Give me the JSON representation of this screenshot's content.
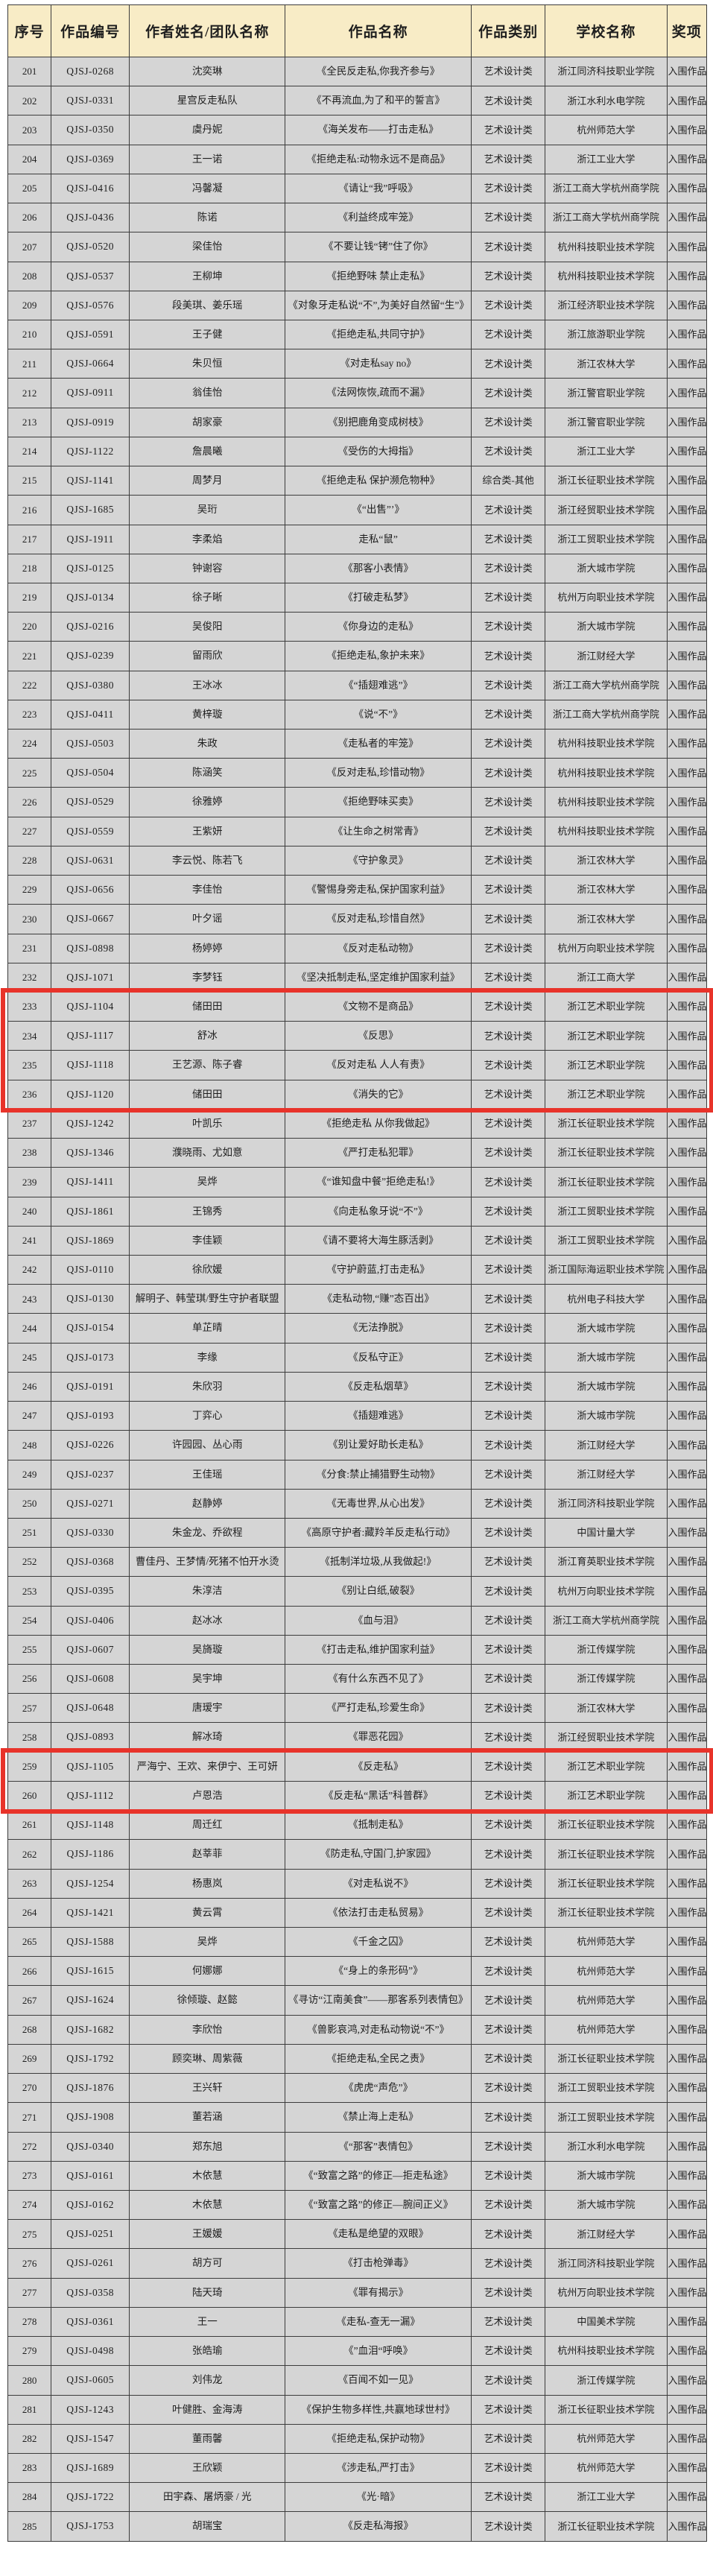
{
  "colors": {
    "header_bg": "#f8ecc6",
    "row_bg": "#d5d5d5",
    "border": "#3c3c3c",
    "highlight_red": "#e8332a"
  },
  "table": {
    "columns": [
      "序号",
      "作品编号",
      "作者姓名/团队名称",
      "作品名称",
      "作品类别",
      "学校名称",
      "奖项"
    ],
    "highlight_groups": [
      [
        "233",
        "236"
      ],
      [
        "259",
        "260"
      ]
    ],
    "rows": [
      [
        "201",
        "QJSJ-0268",
        "沈奕琳",
        "《全民反走私,你我齐参与》",
        "艺术设计类",
        "浙江同济科技职业学院",
        "入围作品"
      ],
      [
        "202",
        "QJSJ-0331",
        "星宫反走私队",
        "《不再流血,为了和平的誓言》",
        "艺术设计类",
        "浙江水利水电学院",
        "入围作品"
      ],
      [
        "203",
        "QJSJ-0350",
        "虞丹妮",
        "《海关发布——打击走私》",
        "艺术设计类",
        "杭州师范大学",
        "入围作品"
      ],
      [
        "204",
        "QJSJ-0369",
        "王一诺",
        "《拒绝走私:动物永远不是商品》",
        "艺术设计类",
        "浙江工业大学",
        "入围作品"
      ],
      [
        "205",
        "QJSJ-0416",
        "冯馨凝",
        "《请让“我”呼吸》",
        "艺术设计类",
        "浙江工商大学杭州商学院",
        "入围作品"
      ],
      [
        "206",
        "QJSJ-0436",
        "陈诺",
        "《利益终成牢笼》",
        "艺术设计类",
        "浙江工商大学杭州商学院",
        "入围作品"
      ],
      [
        "207",
        "QJSJ-0520",
        "梁佳怡",
        "《不要让钱“铐”住了你》",
        "艺术设计类",
        "杭州科技职业技术学院",
        "入围作品"
      ],
      [
        "208",
        "QJSJ-0537",
        "王柳坤",
        "《拒绝野味 禁止走私》",
        "艺术设计类",
        "杭州科技职业技术学院",
        "入围作品"
      ],
      [
        "209",
        "QJSJ-0576",
        "段美琪、姜乐瑶",
        "《对象牙走私说“不”,为美好自然留“生”》",
        "艺术设计类",
        "浙江经济职业技术学院",
        "入围作品"
      ],
      [
        "210",
        "QJSJ-0591",
        "王子健",
        "《拒绝走私,共同守护》",
        "艺术设计类",
        "浙江旅游职业学院",
        "入围作品"
      ],
      [
        "211",
        "QJSJ-0664",
        "朱贝恒",
        "《对走私say no》",
        "艺术设计类",
        "浙江农林大学",
        "入围作品"
      ],
      [
        "212",
        "QJSJ-0911",
        "翁佳怡",
        "《法网恢恢,疏而不漏》",
        "艺术设计类",
        "浙江警官职业学院",
        "入围作品"
      ],
      [
        "213",
        "QJSJ-0919",
        "胡家豪",
        "《别把鹿角变成树枝》",
        "艺术设计类",
        "浙江警官职业学院",
        "入围作品"
      ],
      [
        "214",
        "QJSJ-1122",
        "詹晨曦",
        "《受伤的大拇指》",
        "艺术设计类",
        "浙江工业大学",
        "入围作品"
      ],
      [
        "215",
        "QJSJ-1141",
        "周梦月",
        "《拒绝走私 保护濒危物种》",
        "综合类-其他",
        "浙江长征职业技术学院",
        "入围作品"
      ],
      [
        "216",
        "QJSJ-1685",
        "吴珩",
        "《“出售”’》",
        "艺术设计类",
        "浙江经贸职业技术学院",
        "入围作品"
      ],
      [
        "217",
        "QJSJ-1911",
        "李柔焰",
        "走私“鼠”",
        "艺术设计类",
        "浙江工贸职业技术学院",
        "入围作品"
      ],
      [
        "218",
        "QJSJ-0125",
        "钟谢容",
        "《那客小表情》",
        "艺术设计类",
        "浙大城市学院",
        "入围作品"
      ],
      [
        "219",
        "QJSJ-0134",
        "徐子晰",
        "《打破走私梦》",
        "艺术设计类",
        "杭州万向职业技术学院",
        "入围作品"
      ],
      [
        "220",
        "QJSJ-0216",
        "吴俊阳",
        "《你身边的走私》",
        "艺术设计类",
        "浙大城市学院",
        "入围作品"
      ],
      [
        "221",
        "QJSJ-0239",
        "留雨欣",
        "《拒绝走私,象护未来》",
        "艺术设计类",
        "浙江财经大学",
        "入围作品"
      ],
      [
        "222",
        "QJSJ-0380",
        "王冰冰",
        "《“插翅难逃”》",
        "艺术设计类",
        "浙江工商大学杭州商学院",
        "入围作品"
      ],
      [
        "223",
        "QJSJ-0411",
        "黄梓璇",
        "《说“不”》",
        "艺术设计类",
        "浙江工商大学杭州商学院",
        "入围作品"
      ],
      [
        "224",
        "QJSJ-0503",
        "朱政",
        "《走私者的牢笼》",
        "艺术设计类",
        "杭州科技职业技术学院",
        "入围作品"
      ],
      [
        "225",
        "QJSJ-0504",
        "陈涵笑",
        "《反对走私,珍惜动物》",
        "艺术设计类",
        "杭州科技职业技术学院",
        "入围作品"
      ],
      [
        "226",
        "QJSJ-0529",
        "徐雅婷",
        "《拒绝野味买卖》",
        "艺术设计类",
        "杭州科技职业技术学院",
        "入围作品"
      ],
      [
        "227",
        "QJSJ-0559",
        "王紫妍",
        "《让生命之树常青》",
        "艺术设计类",
        "杭州科技职业技术学院",
        "入围作品"
      ],
      [
        "228",
        "QJSJ-0631",
        "李云悦、陈若飞",
        "《守护象灵》",
        "艺术设计类",
        "浙江农林大学",
        "入围作品"
      ],
      [
        "229",
        "QJSJ-0656",
        "李佳怡",
        "《警惕身旁走私,保护国家利益》",
        "艺术设计类",
        "浙江农林大学",
        "入围作品"
      ],
      [
        "230",
        "QJSJ-0667",
        "叶夕谣",
        "《反对走私,珍惜自然》",
        "艺术设计类",
        "浙江农林大学",
        "入围作品"
      ],
      [
        "231",
        "QJSJ-0898",
        "杨婷婷",
        "《反对走私动物》",
        "艺术设计类",
        "杭州万向职业技术学院",
        "入围作品"
      ],
      [
        "232",
        "QJSJ-1071",
        "李梦钰",
        "《坚决抵制走私,坚定维护国家利益》",
        "艺术设计类",
        "浙江工商大学",
        "入围作品"
      ],
      [
        "233",
        "QJSJ-1104",
        "储田田",
        "《文物不是商品》",
        "艺术设计类",
        "浙江艺术职业学院",
        "入围作品"
      ],
      [
        "234",
        "QJSJ-1117",
        "舒冰",
        "《反思》",
        "艺术设计类",
        "浙江艺术职业学院",
        "入围作品"
      ],
      [
        "235",
        "QJSJ-1118",
        "王艺源、陈子睿",
        "《反对走私 人人有责》",
        "艺术设计类",
        "浙江艺术职业学院",
        "入围作品"
      ],
      [
        "236",
        "QJSJ-1120",
        "储田田",
        "《消失的它》",
        "艺术设计类",
        "浙江艺术职业学院",
        "入围作品"
      ],
      [
        "237",
        "QJSJ-1242",
        "叶凯乐",
        "《拒绝走私 从你我做起》",
        "艺术设计类",
        "浙江长征职业技术学院",
        "入围作品"
      ],
      [
        "238",
        "QJSJ-1346",
        "濮晓雨、尤如意",
        "《严打走私犯罪》",
        "艺术设计类",
        "浙江长征职业技术学院",
        "入围作品"
      ],
      [
        "239",
        "QJSJ-1411",
        "吴烨",
        "《“谁知盘中餐”拒绝走私!》",
        "艺术设计类",
        "浙江长征职业技术学院",
        "入围作品"
      ],
      [
        "240",
        "QJSJ-1861",
        "王锦秀",
        "《向走私象牙说“不”》",
        "艺术设计类",
        "浙江工贸职业技术学院",
        "入围作品"
      ],
      [
        "241",
        "QJSJ-1869",
        "李佳颖",
        "《请不要将大海生豚活剥》",
        "艺术设计类",
        "浙江工贸职业技术学院",
        "入围作品"
      ],
      [
        "242",
        "QJSJ-0110",
        "徐欣媛",
        "《守护蔚蓝,打击走私》",
        "艺术设计类",
        "浙江国际海运职业技术学院",
        "入围作品"
      ],
      [
        "243",
        "QJSJ-0130",
        "解明子、韩莹琪/野生守护者联盟",
        "《走私动物,“赚”态百出》",
        "艺术设计类",
        "杭州电子科技大学",
        "入围作品"
      ],
      [
        "244",
        "QJSJ-0154",
        "单芷晴",
        "《无法挣脱》",
        "艺术设计类",
        "浙大城市学院",
        "入围作品"
      ],
      [
        "245",
        "QJSJ-0173",
        "李缘",
        "《反私守正》",
        "艺术设计类",
        "浙大城市学院",
        "入围作品"
      ],
      [
        "246",
        "QJSJ-0191",
        "朱欣羽",
        "《反走私烟草》",
        "艺术设计类",
        "浙大城市学院",
        "入围作品"
      ],
      [
        "247",
        "QJSJ-0193",
        "丁弈心",
        "《插翅难逃》",
        "艺术设计类",
        "浙大城市学院",
        "入围作品"
      ],
      [
        "248",
        "QJSJ-0226",
        "许园园、丛心雨",
        "《别让爱好助长走私》",
        "艺术设计类",
        "浙江财经大学",
        "入围作品"
      ],
      [
        "249",
        "QJSJ-0237",
        "王佳瑶",
        "《分食:禁止捕猎野生动物》",
        "艺术设计类",
        "浙江财经大学",
        "入围作品"
      ],
      [
        "250",
        "QJSJ-0271",
        "赵静婷",
        "《无毒世界,从心出发》",
        "艺术设计类",
        "浙江同济科技职业学院",
        "入围作品"
      ],
      [
        "251",
        "QJSJ-0330",
        "朱金龙、乔欲程",
        "《高原守护者:藏羚羊反走私行动》",
        "艺术设计类",
        "中国计量大学",
        "入围作品"
      ],
      [
        "252",
        "QJSJ-0368",
        "曹佳丹、王梦情/死猪不怕开水烫",
        "《抵制洋垃圾,从我做起!》",
        "艺术设计类",
        "浙江育英职业技术学院",
        "入围作品"
      ],
      [
        "253",
        "QJSJ-0395",
        "朱淳洁",
        "《别让白纸,破裂》",
        "艺术设计类",
        "杭州万向职业技术学院",
        "入围作品"
      ],
      [
        "254",
        "QJSJ-0406",
        "赵冰冰",
        "《血与泪》",
        "艺术设计类",
        "浙江工商大学杭州商学院",
        "入围作品"
      ],
      [
        "255",
        "QJSJ-0607",
        "吴旖璇",
        "《打击走私,维护国家利益》",
        "艺术设计类",
        "浙江传媒学院",
        "入围作品"
      ],
      [
        "256",
        "QJSJ-0608",
        "吴宇坤",
        "《有什么东西不见了》",
        "艺术设计类",
        "浙江传媒学院",
        "入围作品"
      ],
      [
        "257",
        "QJSJ-0648",
        "唐瑷宇",
        "《严打走私,珍爱生命》",
        "艺术设计类",
        "浙江农林大学",
        "入围作品"
      ],
      [
        "258",
        "QJSJ-0893",
        "解冰琦",
        "《罪恶花园》",
        "艺术设计类",
        "浙江经贸职业技术学院",
        "入围作品"
      ],
      [
        "259",
        "QJSJ-1105",
        "严海宁、王欢、来伊宁、王可妍",
        "《反走私》",
        "艺术设计类",
        "浙江艺术职业学院",
        "入围作品"
      ],
      [
        "260",
        "QJSJ-1112",
        "卢恩浩",
        "《反走私“黑话”科普群》",
        "艺术设计类",
        "浙江艺术职业学院",
        "入围作品"
      ],
      [
        "261",
        "QJSJ-1148",
        "周迁红",
        "《抵制走私》",
        "艺术设计类",
        "浙江长征职业技术学院",
        "入围作品"
      ],
      [
        "262",
        "QJSJ-1186",
        "赵莘菲",
        "《防走私,守国门,护家园》",
        "艺术设计类",
        "浙江长征职业技术学院",
        "入围作品"
      ],
      [
        "263",
        "QJSJ-1254",
        "杨惠岚",
        "《对走私说不》",
        "艺术设计类",
        "浙江长征职业技术学院",
        "入围作品"
      ],
      [
        "264",
        "QJSJ-1421",
        "黄云霄",
        "《依法打击走私贸易》",
        "艺术设计类",
        "浙江长征职业技术学院",
        "入围作品"
      ],
      [
        "265",
        "QJSJ-1588",
        "吴烨",
        "《千金之囚》",
        "艺术设计类",
        "杭州师范大学",
        "入围作品"
      ],
      [
        "266",
        "QJSJ-1615",
        "何娜娜",
        "《“身上的条形码”》",
        "艺术设计类",
        "杭州师范大学",
        "入围作品"
      ],
      [
        "267",
        "QJSJ-1624",
        "徐倾璇、赵懿",
        "《寻访“江南美食”——那客系列表情包》",
        "艺术设计类",
        "杭州师范大学",
        "入围作品"
      ],
      [
        "268",
        "QJSJ-1682",
        "李欣怡",
        "《兽影哀鸿,对走私动物说“不”》",
        "艺术设计类",
        "杭州师范大学",
        "入围作品"
      ],
      [
        "269",
        "QJSJ-1792",
        "顾奕琳、周紫薇",
        "《拒绝走私,全民之责》",
        "艺术设计类",
        "浙江长征职业技术学院",
        "入围作品"
      ],
      [
        "270",
        "QJSJ-1876",
        "王兴轩",
        "《虎虎“声危”》",
        "艺术设计类",
        "浙江工贸职业技术学院",
        "入围作品"
      ],
      [
        "271",
        "QJSJ-1908",
        "董若涵",
        "《禁止海上走私》",
        "艺术设计类",
        "浙江工贸职业技术学院",
        "入围作品"
      ],
      [
        "272",
        "QJSJ-0340",
        "郑东旭",
        "《“那客”表情包》",
        "艺术设计类",
        "浙江水利水电学院",
        "入围作品"
      ],
      [
        "273",
        "QJSJ-0161",
        "木依慧",
        "《“致富之路”的修正—拒走私途》",
        "艺术设计类",
        "浙大城市学院",
        "入围作品"
      ],
      [
        "274",
        "QJSJ-0162",
        "木依慧",
        "《“致富之路”的修正—腕间正义》",
        "艺术设计类",
        "浙大城市学院",
        "入围作品"
      ],
      [
        "275",
        "QJSJ-0251",
        "王媛媛",
        "《走私是绝望的双眼》",
        "艺术设计类",
        "浙江财经大学",
        "入围作品"
      ],
      [
        "276",
        "QJSJ-0261",
        "胡方可",
        "《打击枪弹毒》",
        "艺术设计类",
        "浙江同济科技职业学院",
        "入围作品"
      ],
      [
        "277",
        "QJSJ-0358",
        "陆天琦",
        "《罪有揭示》",
        "艺术设计类",
        "杭州万向职业技术学院",
        "入围作品"
      ],
      [
        "278",
        "QJSJ-0361",
        "王一",
        "《走私-查无一漏》",
        "艺术设计类",
        "中国美术学院",
        "入围作品"
      ],
      [
        "279",
        "QJSJ-0498",
        "张皓瑜",
        "《”血泪“呼唤》",
        "艺术设计类",
        "杭州科技职业技术学院",
        "入围作品"
      ],
      [
        "280",
        "QJSJ-0605",
        "刘伟龙",
        "《百闻不如一见》",
        "艺术设计类",
        "浙江传媒学院",
        "入围作品"
      ],
      [
        "281",
        "QJSJ-1243",
        "叶健胜、金海涛",
        "《保护生物多样性,共赢地球世村》",
        "艺术设计类",
        "浙江长征职业技术学院",
        "入围作品"
      ],
      [
        "282",
        "QJSJ-1547",
        "董雨馨",
        "《拒绝走私,保护动物》",
        "艺术设计类",
        "杭州师范大学",
        "入围作品"
      ],
      [
        "283",
        "QJSJ-1689",
        "王欣颖",
        "《涉走私,严打击》",
        "艺术设计类",
        "杭州师范大学",
        "入围作品"
      ],
      [
        "284",
        "QJSJ-1722",
        "田宇森、屠炳豪 / 光",
        "《光·暗》",
        "艺术设计类",
        "浙江工业大学",
        "入围作品"
      ],
      [
        "285",
        "QJSJ-1753",
        "胡瑞宝",
        "《反走私海报》",
        "艺术设计类",
        "浙江长征职业技术学院",
        "入围作品"
      ]
    ]
  }
}
